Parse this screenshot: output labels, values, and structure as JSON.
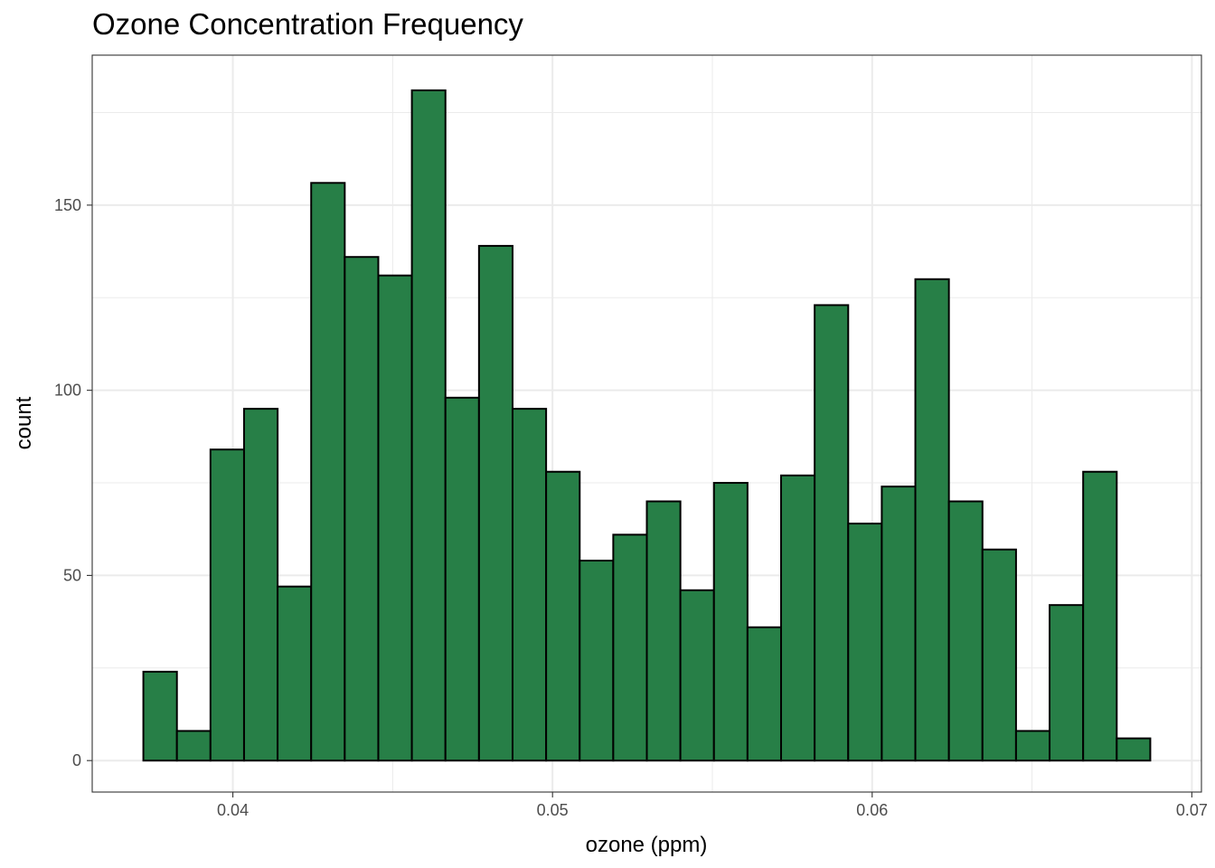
{
  "chart_data": {
    "type": "bar",
    "title": "Ozone Concentration Frequency",
    "xlabel": "ozone (ppm)",
    "ylabel": "count",
    "bins": [
      {
        "x0": 0.0372,
        "x1": 0.03825,
        "count": 24
      },
      {
        "x0": 0.03825,
        "x1": 0.0393,
        "count": 8
      },
      {
        "x0": 0.0393,
        "x1": 0.04035,
        "count": 84
      },
      {
        "x0": 0.04035,
        "x1": 0.0414,
        "count": 95
      },
      {
        "x0": 0.0414,
        "x1": 0.04245,
        "count": 47
      },
      {
        "x0": 0.04245,
        "x1": 0.0435,
        "count": 156
      },
      {
        "x0": 0.0435,
        "x1": 0.04455,
        "count": 136
      },
      {
        "x0": 0.04455,
        "x1": 0.0456,
        "count": 131
      },
      {
        "x0": 0.0456,
        "x1": 0.04665,
        "count": 181
      },
      {
        "x0": 0.04665,
        "x1": 0.0477,
        "count": 98
      },
      {
        "x0": 0.0477,
        "x1": 0.04875,
        "count": 139
      },
      {
        "x0": 0.04875,
        "x1": 0.0498,
        "count": 95
      },
      {
        "x0": 0.0498,
        "x1": 0.05085,
        "count": 78
      },
      {
        "x0": 0.05085,
        "x1": 0.0519,
        "count": 54
      },
      {
        "x0": 0.0519,
        "x1": 0.05295,
        "count": 61
      },
      {
        "x0": 0.05295,
        "x1": 0.054,
        "count": 70
      },
      {
        "x0": 0.054,
        "x1": 0.05505,
        "count": 46
      },
      {
        "x0": 0.05505,
        "x1": 0.0561,
        "count": 75
      },
      {
        "x0": 0.0561,
        "x1": 0.05715,
        "count": 36
      },
      {
        "x0": 0.05715,
        "x1": 0.0582,
        "count": 77
      },
      {
        "x0": 0.0582,
        "x1": 0.05925,
        "count": 123
      },
      {
        "x0": 0.05925,
        "x1": 0.0603,
        "count": 64
      },
      {
        "x0": 0.0603,
        "x1": 0.06135,
        "count": 74
      },
      {
        "x0": 0.06135,
        "x1": 0.0624,
        "count": 130
      },
      {
        "x0": 0.0624,
        "x1": 0.06345,
        "count": 70
      },
      {
        "x0": 0.06345,
        "x1": 0.0645,
        "count": 57
      },
      {
        "x0": 0.0645,
        "x1": 0.06555,
        "count": 8
      },
      {
        "x0": 0.06555,
        "x1": 0.0666,
        "count": 42
      },
      {
        "x0": 0.0666,
        "x1": 0.06765,
        "count": 78
      },
      {
        "x0": 0.06765,
        "x1": 0.0687,
        "count": 6
      }
    ],
    "xlim": [
      0.0356,
      0.0703
    ],
    "ylim": [
      -8.5,
      190.5
    ],
    "x_ticks": [
      0.04,
      0.05,
      0.06,
      0.07
    ],
    "x_tick_labels": [
      "0.04",
      "0.05",
      "0.06",
      "0.07"
    ],
    "y_ticks": [
      0,
      50,
      100,
      150
    ],
    "y_tick_labels": [
      "0",
      "50",
      "100",
      "150"
    ],
    "grid": true,
    "bar_fill": "#277f47",
    "bar_stroke": "#000000",
    "grid_color": "#ebebeb",
    "panel_border": "#333333"
  }
}
